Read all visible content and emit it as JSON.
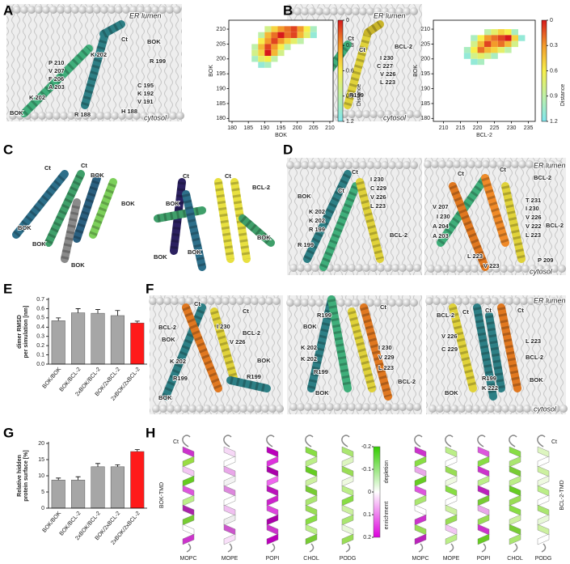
{
  "panel_labels": [
    "A",
    "B",
    "C",
    "D",
    "E",
    "F",
    "G",
    "H"
  ],
  "structures": [
    {
      "labels": [
        "ER lumen",
        "Ct",
        "BOK",
        "K 202",
        "R 199",
        "P 210",
        "V 207",
        "F 206",
        "A 203",
        "K 202",
        "C 195",
        "K 192",
        "V 191",
        "H 188",
        "R 188",
        "BOK",
        "cytosol"
      ]
    },
    {
      "labels": [
        "ER lumen",
        "Ct",
        "Ct",
        "BOK",
        "BCL-2",
        "V 207",
        "F 206",
        "A 203",
        "K 202",
        "I 230",
        "C 227",
        "V 226",
        "L 223",
        "R199",
        "cytosol"
      ]
    },
    {
      "labels": [
        "Ct",
        "Ct",
        "BOK",
        "BOK",
        "BOK",
        "BOK",
        "BOK"
      ]
    },
    {
      "labels": [
        "Ct",
        "BOK",
        "Ct",
        "BCL-2",
        "BOK",
        "BOK",
        "BOK"
      ]
    },
    {
      "labels": [
        "Ct",
        "Ct",
        "BOK",
        "K 202",
        "K 202",
        "R 199",
        "R 199",
        "I 230",
        "C 229",
        "V 226",
        "L 223",
        "BCL-2"
      ]
    },
    {
      "labels": [
        "ER lumen",
        "Ct",
        "Ct",
        "BCL-2",
        "V 207",
        "I 230",
        "A 204",
        "A 203",
        "T 231",
        "I 230",
        "V 226",
        "V 222",
        "L 223",
        "BCL-2",
        "L 223",
        "V 223",
        "P 209",
        "cytosol"
      ]
    },
    {
      "labels": [
        "Ct",
        "Ct",
        "BCL-2",
        "BOK",
        "I 230",
        "BCL-2",
        "V 226",
        "K 202",
        "R199",
        "R199",
        "BOK",
        "BOK"
      ]
    },
    {
      "labels": [
        "R199",
        "BOK",
        "K 202",
        "K 202",
        "R199",
        "Ct",
        "I 230",
        "V 229",
        "L 223",
        "BCL-2",
        "BOK"
      ]
    },
    {
      "labels": [
        "ER lumen",
        "BCL-2",
        "Ct",
        "Ct",
        "Ct",
        "V 226",
        "C 229",
        "L 223",
        "BCL-2",
        "BOK",
        "R199",
        "K 222",
        "BOK",
        "cytosol"
      ]
    }
  ],
  "chart_data": [
    {
      "type": "heatmap",
      "xlabel": "BOK",
      "ylabel": "BOK",
      "colorbar_label": "Distance",
      "xlim": [
        179,
        211
      ],
      "ylim": [
        179,
        213
      ],
      "xticks": [
        180,
        185,
        190,
        195,
        200,
        205,
        210
      ],
      "yticks": [
        180,
        185,
        190,
        195,
        200,
        205,
        210
      ],
      "clim": [
        0,
        1.2
      ],
      "cticks": [
        0,
        0.3,
        0.6,
        0.9,
        1.2
      ],
      "colormap": [
        "#d7191c",
        "#f39b2b",
        "#f7ef4a",
        "#bff0a8",
        "#7fe6ef"
      ],
      "x": [
        191,
        193,
        195,
        197,
        199,
        201,
        203,
        205,
        189,
        191,
        193,
        195,
        197,
        199,
        201,
        203,
        205,
        189,
        191,
        193,
        195,
        197,
        199,
        201,
        187,
        189,
        191,
        193,
        195,
        197,
        187,
        189,
        191,
        193,
        195,
        187,
        189,
        191,
        193,
        189,
        191
      ],
      "y": [
        210,
        210,
        210,
        210,
        210,
        210,
        210,
        210,
        208,
        208,
        208,
        208,
        208,
        208,
        208,
        208,
        208,
        206,
        206,
        206,
        206,
        206,
        206,
        206,
        204,
        204,
        204,
        204,
        204,
        204,
        202,
        202,
        202,
        202,
        202,
        200,
        200,
        200,
        200,
        198,
        198
      ],
      "values": [
        0.8,
        0.5,
        0.3,
        0.2,
        0.1,
        0.3,
        0.6,
        1.0,
        0.9,
        0.4,
        0.2,
        0,
        0.2,
        0.1,
        0.4,
        0.7,
        1.1,
        0.6,
        0.3,
        0.1,
        0.3,
        0.5,
        0.7,
        0.9,
        0.9,
        0.4,
        0.1,
        0.3,
        0.6,
        0.9,
        0.8,
        0.5,
        0,
        0.4,
        0.8,
        1.0,
        0.7,
        0.6,
        0.9,
        1.1,
        1.0
      ]
    },
    {
      "type": "heatmap",
      "xlabel": "BCL-2",
      "ylabel": "BOK",
      "colorbar_label": "Distance",
      "xlim": [
        207,
        237
      ],
      "ylim": [
        179,
        213
      ],
      "xticks": [
        210,
        215,
        220,
        225,
        230,
        235
      ],
      "yticks": [
        180,
        185,
        190,
        195,
        200,
        205,
        210
      ],
      "clim": [
        0,
        1.2
      ],
      "cticks": [
        0,
        0.3,
        0.6,
        0.9,
        1.2
      ],
      "colormap": [
        "#d7191c",
        "#f39b2b",
        "#f7ef4a",
        "#bff0a8",
        "#7fe6ef"
      ],
      "x": [
        223,
        225,
        227,
        229,
        231,
        219,
        221,
        223,
        225,
        227,
        229,
        231,
        233,
        219,
        221,
        223,
        225,
        227,
        229,
        231,
        217,
        219,
        221,
        223,
        225,
        227,
        229,
        217,
        219,
        221,
        223,
        225,
        219,
        221
      ],
      "y": [
        209,
        209,
        209,
        209,
        209,
        207,
        207,
        207,
        207,
        207,
        207,
        207,
        207,
        205,
        205,
        205,
        205,
        205,
        205,
        205,
        203,
        203,
        203,
        203,
        203,
        203,
        203,
        201,
        201,
        201,
        201,
        201,
        199,
        199
      ],
      "values": [
        0.9,
        0.7,
        0.5,
        0.6,
        1.0,
        1.0,
        0.6,
        0.3,
        0.2,
        0.1,
        0,
        0.5,
        1.1,
        0.8,
        0.4,
        0.1,
        0.3,
        0.2,
        0.4,
        0.8,
        1.0,
        0.6,
        0.2,
        0.4,
        0.5,
        0.7,
        0.9,
        1.1,
        0.8,
        0.7,
        0.8,
        1.0,
        1.1,
        1.0
      ]
    },
    {
      "type": "bar",
      "ylabel": [
        "dimer RMSD",
        "per simulation [nm]"
      ],
      "categories": [
        "BOK/BOK",
        "BOK/BCL-2",
        "2xBOK/BCL-2",
        "BOK/2xBCL-2",
        "2xBOK/2xBCL-2"
      ],
      "values": [
        0.47,
        0.555,
        0.55,
        0.525,
        0.445
      ],
      "errors": [
        0.03,
        0.045,
        0.04,
        0.055,
        0.02
      ],
      "colors": [
        "#a6a6a6",
        "#a6a6a6",
        "#a6a6a6",
        "#a6a6a6",
        "#ff1a1a"
      ],
      "ylim": [
        0,
        0.7
      ],
      "yticks": [
        {
          "value": 0,
          "label": "0.0"
        },
        0.1,
        0.2,
        0.3,
        0.4,
        0.5,
        0.6,
        0.7
      ]
    },
    {
      "type": "bar",
      "ylabel": [
        "Relative hidden",
        "protein surface [%]"
      ],
      "categories": [
        "BOK/BOK",
        "BOK/BCL-2",
        "2xBOK/BCL-2",
        "BOK/2xBCL-2",
        "2xBOK/2xBCL-2"
      ],
      "values": [
        8.7,
        8.7,
        12.8,
        12.8,
        17.5
      ],
      "errors": [
        0.6,
        1.0,
        1.0,
        0.6,
        0.6
      ],
      "colors": [
        "#a6a6a6",
        "#a6a6a6",
        "#a6a6a6",
        "#a6a6a6",
        "#ff1a1a"
      ],
      "ylim": [
        0,
        20
      ],
      "yticks": [
        0,
        5,
        10,
        15,
        20
      ]
    }
  ],
  "lipid_enrichment": {
    "left_title": "BOK-TMD",
    "right_title": "BCL-2-TMD",
    "ct_labels": [
      "Ct",
      "Ct"
    ],
    "lipids_left": [
      "MOPC",
      "MOPE",
      "POPI",
      "CHOL",
      "PODG"
    ],
    "lipids_right": [
      "MOPC",
      "MOPE",
      "POPI",
      "CHOL",
      "PODG"
    ],
    "colorbar": {
      "lim": [
        -0.2,
        0.2
      ],
      "ticks": [
        -0.2,
        -0.1,
        0,
        0.1,
        0.2
      ],
      "labels": [
        "depletion",
        "enrichment"
      ],
      "colors": [
        "#33cc00",
        "#ffffff",
        "#dd00dd"
      ]
    }
  }
}
